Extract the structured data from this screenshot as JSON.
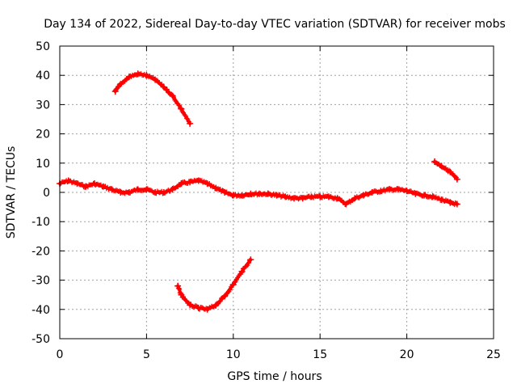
{
  "chart_data": {
    "type": "scatter",
    "title": "Day 134 of 2022, Sidereal Day-to-day VTEC variation (SDTVAR) for receiver mobs",
    "xlabel": "GPS time / hours",
    "ylabel": "SDTVAR / TECUs",
    "xlim": [
      0,
      25
    ],
    "ylim": [
      -50,
      50
    ],
    "x_ticks": [
      0,
      5,
      10,
      15,
      20,
      25
    ],
    "y_ticks": [
      -50,
      -40,
      -30,
      -20,
      -10,
      0,
      10,
      20,
      30,
      40,
      50
    ],
    "grid": true,
    "marker": "plus",
    "color": "#ff0000",
    "series": [
      {
        "name": "main trace near zero",
        "x": [
          0.0,
          0.5,
          1.0,
          1.5,
          2.0,
          2.5,
          3.0,
          3.5,
          4.0,
          4.5,
          5.0,
          5.5,
          6.0,
          6.5,
          7.0,
          7.5,
          8.0,
          8.5,
          9.0,
          9.5,
          10.0,
          10.5,
          11.0,
          11.5,
          12.0,
          12.5,
          13.0,
          13.5,
          14.0,
          14.5,
          15.0,
          15.5,
          16.0,
          16.5,
          17.0,
          17.5,
          18.0,
          18.5,
          19.0,
          19.5,
          20.0,
          20.5,
          21.0,
          21.5,
          22.0,
          22.5,
          22.9
        ],
        "y": [
          3,
          4,
          3,
          2,
          3,
          2,
          1,
          0,
          0,
          1,
          1,
          0,
          0,
          1,
          3,
          3.5,
          4,
          3,
          1.5,
          0,
          -1,
          -1,
          -0.5,
          -0.5,
          -0.5,
          -1,
          -1.5,
          -2,
          -2,
          -1.5,
          -1.5,
          -1.5,
          -2,
          -4,
          -2,
          -1,
          0,
          0.5,
          1,
          1,
          0.5,
          -0.5,
          -1,
          -1.5,
          -2.5,
          -3.5,
          -4
        ]
      },
      {
        "name": "upper arc",
        "x": [
          3.2,
          3.5,
          4.0,
          4.5,
          5.0,
          5.5,
          6.0,
          6.5,
          7.0,
          7.5
        ],
        "y": [
          34.5,
          37,
          39.5,
          40.5,
          40,
          38.5,
          36,
          33,
          28.5,
          23.5
        ]
      },
      {
        "name": "lower arc",
        "x": [
          6.8,
          7.0,
          7.5,
          8.0,
          8.5,
          9.0,
          9.5,
          10.0,
          10.5,
          11.0
        ],
        "y": [
          -32,
          -35,
          -38.5,
          -39.5,
          -40,
          -38.5,
          -35.5,
          -31.5,
          -27,
          -23
        ]
      },
      {
        "name": "late segment",
        "x": [
          21.6,
          22.0,
          22.5,
          22.9
        ],
        "y": [
          10.5,
          9,
          7,
          4.5
        ]
      }
    ]
  }
}
